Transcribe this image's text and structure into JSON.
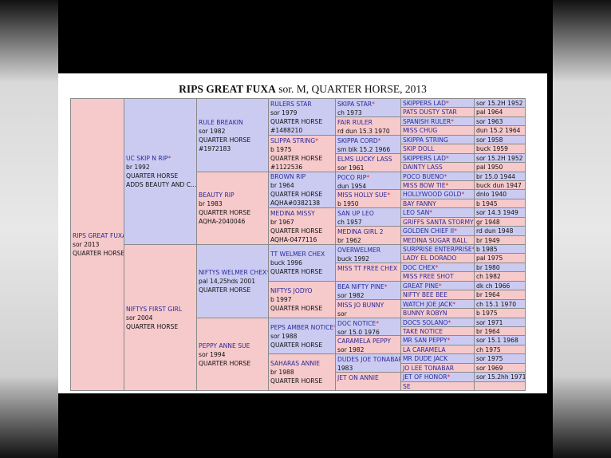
{
  "title": {
    "name": "RIPS GREAT FUXA",
    "details": "sor. M, QUARTER HORSE, 2013"
  },
  "subject": {
    "name": "RIPS GREAT FUXA",
    "lines": [
      "sor 2013",
      "QUARTER HORSE"
    ]
  },
  "generations": [
    [
      {
        "name": "UC SKIP N RIP",
        "mark": "*",
        "lines": [
          "br 1992",
          "QUARTER HORSE",
          "ADDS BEAUTY AND C..."
        ]
      },
      {
        "name": "NIFTYS FIRST GIRL",
        "lines": [
          "sor 2004",
          "QUARTER HORSE"
        ]
      }
    ],
    [
      {
        "name": "RULE BREAKIN",
        "lines": [
          "sor 1982",
          "QUARTER HORSE",
          "#1972183"
        ]
      },
      {
        "name": "BEAUTY RIP",
        "lines": [
          "br 1983",
          "QUARTER HORSE",
          "AQHA-2040046"
        ]
      },
      {
        "name": "NIFTYS WELMER CHEX",
        "mark": "*",
        "lines": [
          "pal 14,25hds 2001",
          "QUARTER HORSE"
        ]
      },
      {
        "name": "PEPPY ANNE SUE",
        "lines": [
          "sor 1994",
          "QUARTER HORSE"
        ]
      }
    ],
    [
      {
        "name": "RULERS STAR",
        "lines": [
          "sor 1979",
          "QUARTER HORSE",
          "#1488210"
        ]
      },
      {
        "name": "SLIPPA STRING",
        "mark": "*",
        "lines": [
          "b 1975",
          "QUARTER HORSE",
          "#1122536"
        ]
      },
      {
        "name": "BROWN RIP",
        "lines": [
          "br 1964",
          "QUARTER HORSE",
          "AQHA#0382138"
        ]
      },
      {
        "name": "MEDINA MISSY",
        "lines": [
          "br 1967",
          "QUARTER HORSE",
          "AQHA-0477116"
        ]
      },
      {
        "name": "TT WELMER CHEX",
        "lines": [
          "buck 1996",
          "QUARTER HORSE"
        ]
      },
      {
        "name": "NIFTYS JODYO",
        "lines": [
          "b 1997",
          "QUARTER HORSE"
        ]
      },
      {
        "name": "PEPS AMBER NOTICE",
        "mark": "*",
        "lines": [
          "sor 1988",
          "QUARTER HORSE"
        ]
      },
      {
        "name": "SAHARAS ANNIE",
        "lines": [
          "br 1988",
          "QUARTER HORSE"
        ]
      }
    ],
    [
      {
        "name": "SKIPA STAR",
        "mark": "*",
        "lines": [
          "ch 1973"
        ]
      },
      {
        "name": "FAIR RULER",
        "lines": [
          "rd dun 15.3 1970"
        ]
      },
      {
        "name": "SKIPPA CORD",
        "mark": "*",
        "lines": [
          "sm blk 15.2 1966"
        ]
      },
      {
        "name": "ELMS LUCKY LASS",
        "lines": [
          "sor 1961"
        ]
      },
      {
        "name": "POCO RIP",
        "mark": "*",
        "lines": [
          "dun 1954"
        ]
      },
      {
        "name": "MISS HOLLY SUE",
        "mark": "*",
        "lines": [
          "b 1950"
        ]
      },
      {
        "name": "SAN UP LEO",
        "lines": [
          "ch 1957"
        ]
      },
      {
        "name": "MEDINA GIRL 2",
        "lines": [
          "br 1962"
        ]
      },
      {
        "name": "OVERWELMER",
        "lines": [
          "buck 1992"
        ]
      },
      {
        "name": "MISS TT FREE CHEX"
      },
      {
        "name": "BEA NIFTY PINE",
        "mark": "*",
        "lines": [
          "sor 1982"
        ]
      },
      {
        "name": "MISS JO BUNNY",
        "lines": [
          "sor"
        ]
      },
      {
        "name": "DOC NOTICE",
        "mark": "*",
        "lines": [
          "sor 15.0 1976"
        ]
      },
      {
        "name": "CARAMELA PEPPY",
        "lines": [
          "sor 1982"
        ]
      },
      {
        "name": "DUDES JOE TONABAR",
        "lines": [
          "1983"
        ]
      },
      {
        "name": "JET ON ANNIE"
      }
    ],
    [
      {
        "name": "SKIPPERS LAD",
        "mark": "*",
        "lines": [
          "sor 15.2H 1952"
        ]
      },
      {
        "name": "PATS DUSTY STAR",
        "lines": [
          "pal 1964"
        ]
      },
      {
        "name": "SPANISH RULER",
        "mark": "*",
        "lines": [
          "sor 1963"
        ]
      },
      {
        "name": "MISS CHUG",
        "lines": [
          "dun 15.2 1964"
        ]
      },
      {
        "name": "SKIPPA STRING",
        "lines": [
          "sor 1958"
        ]
      },
      {
        "name": "SKIP DOLL",
        "lines": [
          "buck 1959"
        ]
      },
      {
        "name": "SKIPPERS LAD",
        "mark": "*",
        "lines": [
          "sor 15.2H 1952"
        ]
      },
      {
        "name": "DAINTY LASS",
        "lines": [
          "pal 1950"
        ]
      },
      {
        "name": "POCO BUENO",
        "mark": "*",
        "lines": [
          "br 15.0 1944"
        ]
      },
      {
        "name": "MISS BOW TIE",
        "mark": "*",
        "lines": [
          "buck dun 1947"
        ]
      },
      {
        "name": "HOLLYWOOD GOLD",
        "mark": "*",
        "lines": [
          "dnlo 1940"
        ]
      },
      {
        "name": "BAY FANNY",
        "lines": [
          "b 1945"
        ]
      },
      {
        "name": "LEO SAN",
        "mark": "*",
        "lines": [
          "sor 14.3 1949"
        ]
      },
      {
        "name": "GRIFFS SANTA STORMY",
        "lines": [
          "gr 1948"
        ]
      },
      {
        "name": "GOLDEN CHIEF II",
        "mark": "*",
        "lines": [
          "rd dun 1948"
        ]
      },
      {
        "name": "MEDINA SUGAR BALL",
        "lines": [
          "br 1949"
        ]
      },
      {
        "name": "SURPRISE ENTERPRISE",
        "mark": "*",
        "lines": [
          "b 1985"
        ]
      },
      {
        "name": "LADY EL DORADO",
        "lines": [
          "pal 1975"
        ]
      },
      {
        "name": "DOC CHEX",
        "mark": "*",
        "lines": [
          "br 1980"
        ]
      },
      {
        "name": "MISS FREE SHOT",
        "lines": [
          "ch 1982"
        ]
      },
      {
        "name": "GREAT PINE",
        "mark": "*",
        "lines": [
          "dk ch 1966"
        ]
      },
      {
        "name": "NIFTY BEE BEE",
        "lines": [
          "br 1964"
        ]
      },
      {
        "name": "WATCH JOE JACK",
        "mark": "*",
        "lines": [
          "ch 15.1 1970"
        ]
      },
      {
        "name": "BUNNY ROBYN",
        "lines": [
          "b 1975"
        ]
      },
      {
        "name": "DOCS SOLANO",
        "mark": "*",
        "lines": [
          "sor 1971"
        ]
      },
      {
        "name": "TAKE NOTICE",
        "lines": [
          "br 1964"
        ]
      },
      {
        "name": "MR SAN PEPPY",
        "mark": "*",
        "lines": [
          "sor 15.1 1968"
        ]
      },
      {
        "name": "LA CARAMELA",
        "lines": [
          "ch 1975"
        ]
      },
      {
        "name": "MR DUDE JACK",
        "lines": [
          "sor 1975"
        ]
      },
      {
        "name": "JO LEE TONABAR",
        "lines": [
          "sor 1969"
        ]
      },
      {
        "name": "JET OF HONOR",
        "mark": "*",
        "lines": [
          "sor 15.2hh 1971"
        ]
      },
      {
        "name": "SE"
      }
    ]
  ]
}
